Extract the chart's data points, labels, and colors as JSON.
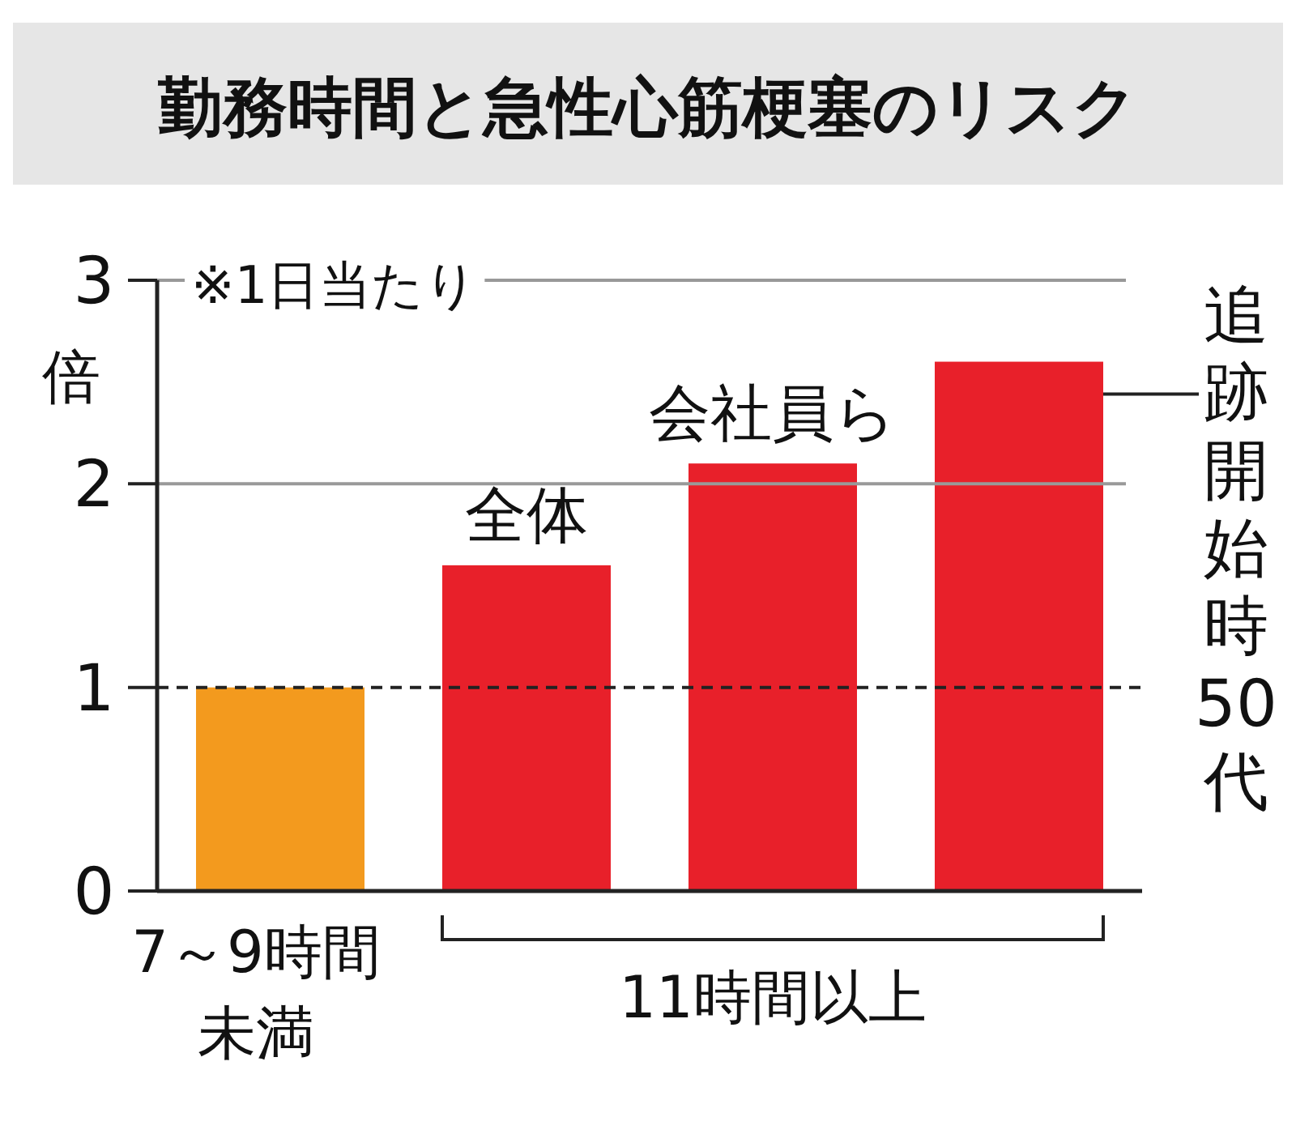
{
  "chart_data": {
    "type": "bar",
    "title": "勤務時間と急性心筋梗塞のリスク",
    "ylabel": "倍",
    "categories": [
      "7～9時間未満",
      "全体",
      "会社員ら",
      null
    ],
    "values": [
      1.0,
      1.6,
      2.1,
      2.6
    ],
    "colors": [
      "#f39a1e",
      "#e8202a",
      "#e8202a",
      "#e8202a"
    ],
    "ylim": [
      0,
      3
    ],
    "yticks": [
      0,
      1,
      2,
      3
    ],
    "ref_lines": [
      {
        "axis": "y",
        "value": 1,
        "line_style": "dashed",
        "color": "#222222"
      },
      {
        "axis": "y",
        "value": 2,
        "line_style": "solid",
        "color": "#999999"
      },
      {
        "axis": "y",
        "value": 3,
        "line_style": "solid",
        "color": "#999999"
      }
    ],
    "annotations": [
      "※1日当たり",
      "11時間以上",
      "追跡開始時50代"
    ]
  }
}
